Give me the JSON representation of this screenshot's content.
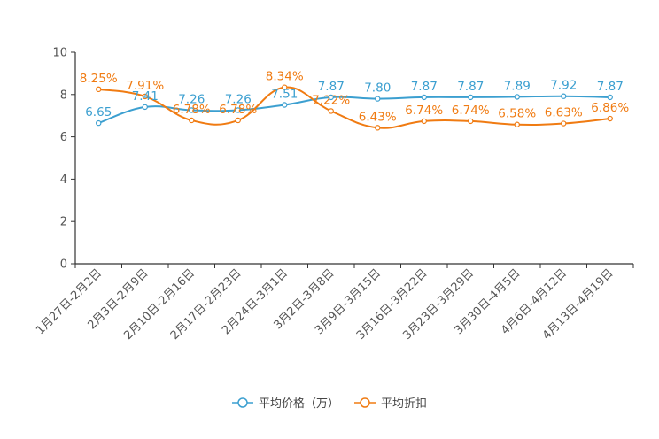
{
  "chart_data": {
    "type": "line",
    "title": "",
    "xlabel": "",
    "ylabel": "",
    "ylim": [
      0,
      10
    ],
    "yticks": [
      0,
      2,
      4,
      6,
      8,
      10
    ],
    "categories": [
      "1月27日-2月2日",
      "2月3日-2月9日",
      "2月10日-2月16日",
      "2月17日-2月23日",
      "2月24日-3月1日",
      "3月2日-3月8日",
      "3月9日-3月15日",
      "3月16日-3月22日",
      "3月23日-3月29日",
      "3月30日-4月5日",
      "4月6日-4月12日",
      "4月13日-4月19日"
    ],
    "series": [
      {
        "name": "平均价格（万）",
        "color": "#3b9fd0",
        "values": [
          6.65,
          7.41,
          7.26,
          7.26,
          7.51,
          7.87,
          7.8,
          7.87,
          7.87,
          7.89,
          7.92,
          7.87
        ],
        "labels": [
          "6.65",
          "7.41",
          "7.26",
          "7.26",
          "7.51",
          "7.87",
          "7.80",
          "7.87",
          "7.87",
          "7.89",
          "7.92",
          "7.87"
        ]
      },
      {
        "name": "平均折扣",
        "color": "#f07b12",
        "values": [
          8.25,
          7.91,
          6.78,
          6.78,
          8.34,
          7.22,
          6.43,
          6.74,
          6.74,
          6.58,
          6.63,
          6.86
        ],
        "labels": [
          "8.25%",
          "7.91%",
          "6.78%",
          "6.78%",
          "8.34%",
          "7.22%",
          "6.43%",
          "6.74%",
          "6.74%",
          "6.58%",
          "6.63%",
          "6.86%"
        ]
      }
    ],
    "legend_position": "bottom-center",
    "grid": false
  }
}
